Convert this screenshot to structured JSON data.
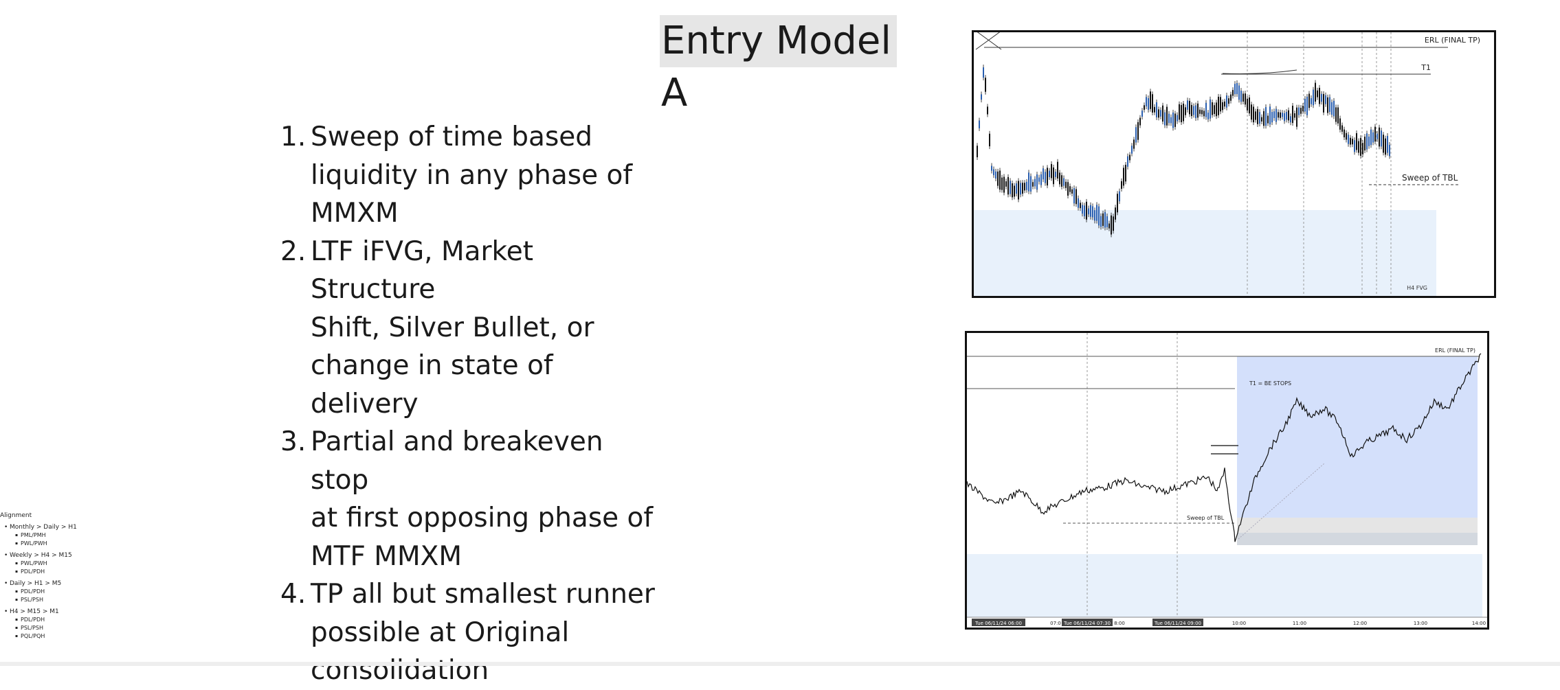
{
  "title": "Entry Model A",
  "steps": [
    {
      "num": "1.",
      "lines": [
        "Sweep of time based",
        "liquidity in any phase of",
        "MMXM"
      ]
    },
    {
      "num": "2.",
      "lines": [
        "LTF iFVG, Market Structure",
        "Shift, Silver Bullet, or",
        "change in state of delivery"
      ]
    },
    {
      "num": "3.",
      "lines": [
        "Partial and breakeven stop",
        "at first opposing phase of",
        "MTF MMXM"
      ]
    },
    {
      "num": "4.",
      "lines": [
        "TP all but smallest runner",
        "possible at Original",
        "consolidation"
      ]
    }
  ],
  "alignment": {
    "heading": "Alignment",
    "groups": [
      {
        "label": "Monthly > Daily > H1",
        "items": [
          "PML/PMH",
          "PWL/PWH"
        ]
      },
      {
        "label": "Weekly > H4 > M15",
        "items": [
          "PWL/PWH",
          "PDL/PDH"
        ]
      },
      {
        "label": "Daily > H1 > M5",
        "items": [
          "PDL/PDH",
          "PSL/PSH"
        ]
      },
      {
        "label": "H4 > M15 > M1",
        "items": [
          "PDL/PDH",
          "PSL/PSH",
          "PQL/PQH"
        ]
      }
    ]
  },
  "chart_top": {
    "labels": {
      "erl": "ERL (FINAL TP)",
      "t1": "T1",
      "sweep": "Sweep of TBL",
      "fvg": "H4 FVG"
    },
    "colors": {
      "fvg_zone": "#e8f1fb",
      "candle_up": "#2a5fb0",
      "candle_down": "#111111"
    }
  },
  "chart_bottom": {
    "labels": {
      "erl": "ERL (FINAL TP)",
      "t1": "T1 = BE STOPS",
      "sweep": "Sweep of TBL"
    },
    "time_labels": [
      "Tue 06/11/24  06:00",
      "07:0",
      "Tue 06/11/24  07:30",
      "8:00",
      "Tue 06/11/24  09:00",
      "10:00",
      "11:00",
      "12:00",
      "13:00",
      "14:00"
    ],
    "colors": {
      "profit_zone": "#d4e0fb",
      "fvg_zone": "#e8f1fb",
      "stop_zone": "#d9d9d9"
    }
  }
}
